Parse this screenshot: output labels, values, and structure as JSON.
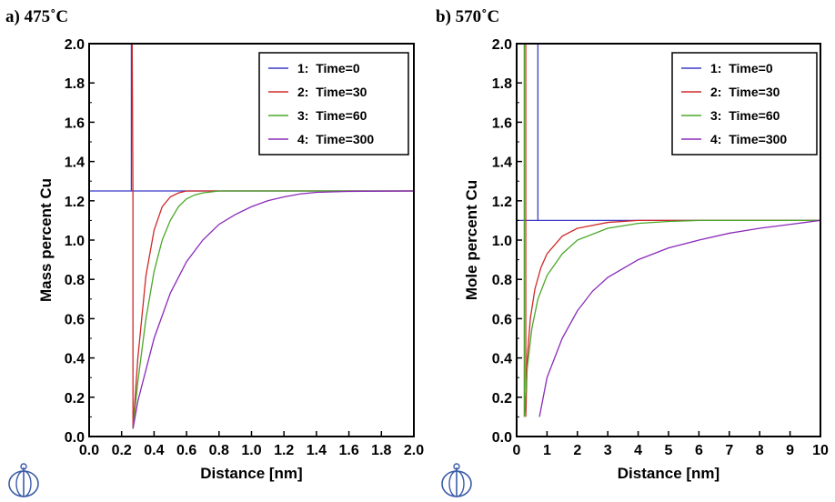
{
  "chart_data": [
    {
      "panel": "a) 475˚C",
      "type": "line",
      "xlabel": "Distance [nm]",
      "ylabel": "Mass percent Cu",
      "xlim": [
        0,
        2.0
      ],
      "ylim": [
        0,
        2.0
      ],
      "xticks": [
        "0.0",
        "0.2",
        "0.4",
        "0.6",
        "0.8",
        "1.0",
        "1.2",
        "1.4",
        "1.6",
        "1.8",
        "2.0"
      ],
      "yticks": [
        "0.0",
        "0.2",
        "0.4",
        "0.6",
        "0.8",
        "1.0",
        "1.2",
        "1.4",
        "1.6",
        "1.8",
        "2.0"
      ],
      "legend_position": "top-right",
      "series": [
        {
          "name": "1:  Time=0",
          "color": "#3a3ac8",
          "points": [
            [
              0.26,
              2.0
            ],
            [
              0.26,
              1.25
            ],
            [
              0,
              1.25
            ],
            [
              2.0,
              1.25
            ]
          ]
        },
        {
          "name": "2:  Time=30",
          "color": "#d02828",
          "points": [
            [
              0.265,
              2.0
            ],
            [
              0.27,
              1.2
            ],
            [
              0.27,
              0.04
            ],
            [
              0.3,
              0.4
            ],
            [
              0.35,
              0.82
            ],
            [
              0.4,
              1.05
            ],
            [
              0.45,
              1.17
            ],
            [
              0.5,
              1.22
            ],
            [
              0.55,
              1.24
            ],
            [
              0.6,
              1.25
            ],
            [
              2.0,
              1.25
            ]
          ]
        },
        {
          "name": "3:  Time=60",
          "color": "#4aa828",
          "points": [
            [
              0.27,
              0.04
            ],
            [
              0.3,
              0.28
            ],
            [
              0.35,
              0.6
            ],
            [
              0.4,
              0.84
            ],
            [
              0.45,
              1.0
            ],
            [
              0.5,
              1.1
            ],
            [
              0.55,
              1.17
            ],
            [
              0.6,
              1.21
            ],
            [
              0.65,
              1.23
            ],
            [
              0.7,
              1.24
            ],
            [
              0.8,
              1.25
            ],
            [
              2.0,
              1.25
            ]
          ]
        },
        {
          "name": "4:  Time=300",
          "color": "#8a2ab8",
          "points": [
            [
              0.27,
              0.04
            ],
            [
              0.3,
              0.18
            ],
            [
              0.4,
              0.5
            ],
            [
              0.5,
              0.73
            ],
            [
              0.6,
              0.89
            ],
            [
              0.7,
              1.0
            ],
            [
              0.8,
              1.08
            ],
            [
              0.9,
              1.13
            ],
            [
              1.0,
              1.17
            ],
            [
              1.1,
              1.2
            ],
            [
              1.2,
              1.22
            ],
            [
              1.3,
              1.235
            ],
            [
              1.4,
              1.243
            ],
            [
              1.6,
              1.248
            ],
            [
              2.0,
              1.25
            ]
          ]
        }
      ]
    },
    {
      "panel": "b) 570˚C",
      "type": "line",
      "xlabel": "Distance [nm]",
      "ylabel": "Mole percent Cu",
      "xlim": [
        0,
        10
      ],
      "ylim": [
        0,
        2.0
      ],
      "xticks": [
        "0",
        "1",
        "2",
        "3",
        "4",
        "5",
        "6",
        "7",
        "8",
        "9",
        "10"
      ],
      "yticks": [
        "0.0",
        "0.2",
        "0.4",
        "0.6",
        "0.8",
        "1.0",
        "1.2",
        "1.4",
        "1.6",
        "1.8",
        "2.0"
      ],
      "legend_position": "top-right",
      "series": [
        {
          "name": "1:  Time=0",
          "color": "#3a3ac8",
          "points": [
            [
              0.7,
              2.0
            ],
            [
              0.7,
              1.1
            ],
            [
              0,
              1.1
            ],
            [
              10,
              1.1
            ]
          ]
        },
        {
          "name": "2:  Time=30",
          "color": "#d02828",
          "points": [
            [
              0.3,
              2.0
            ],
            [
              0.3,
              0.1
            ],
            [
              0.35,
              0.4
            ],
            [
              0.45,
              0.6
            ],
            [
              0.6,
              0.75
            ],
            [
              0.8,
              0.86
            ],
            [
              1.0,
              0.93
            ],
            [
              1.5,
              1.02
            ],
            [
              2.0,
              1.06
            ],
            [
              3.0,
              1.09
            ],
            [
              4.0,
              1.1
            ],
            [
              10,
              1.1
            ]
          ]
        },
        {
          "name": "3:  Time=60",
          "color": "#4aa828",
          "points": [
            [
              0.25,
              2.0
            ],
            [
              0.25,
              0.1
            ],
            [
              0.35,
              0.35
            ],
            [
              0.5,
              0.55
            ],
            [
              0.7,
              0.7
            ],
            [
              1.0,
              0.82
            ],
            [
              1.5,
              0.93
            ],
            [
              2.0,
              1.0
            ],
            [
              3.0,
              1.06
            ],
            [
              4.0,
              1.085
            ],
            [
              5.0,
              1.095
            ],
            [
              6.0,
              1.1
            ],
            [
              10,
              1.1
            ]
          ]
        },
        {
          "name": "4:  Time=300",
          "color": "#8a2ab8",
          "points": [
            [
              0.75,
              0.1
            ],
            [
              1.0,
              0.3
            ],
            [
              1.5,
              0.5
            ],
            [
              2.0,
              0.64
            ],
            [
              2.5,
              0.74
            ],
            [
              3.0,
              0.81
            ],
            [
              4.0,
              0.9
            ],
            [
              5.0,
              0.96
            ],
            [
              6.0,
              1.0
            ],
            [
              7.0,
              1.035
            ],
            [
              8.0,
              1.06
            ],
            [
              9.0,
              1.08
            ],
            [
              10,
              1.1
            ]
          ]
        }
      ]
    }
  ]
}
